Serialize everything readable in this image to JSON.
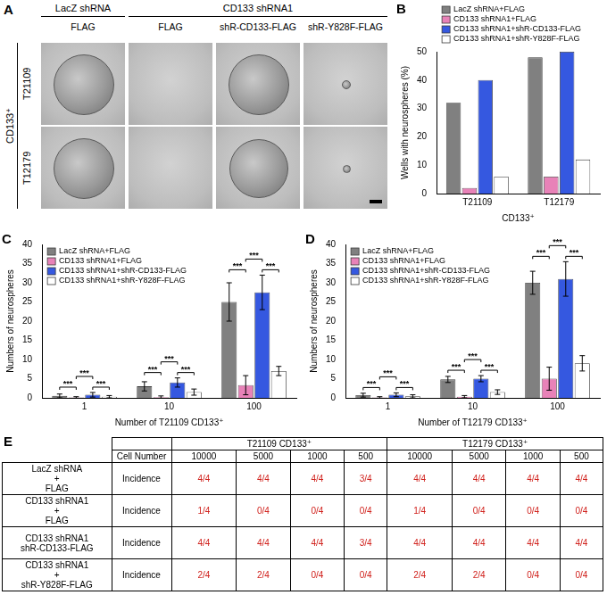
{
  "panel_a": {
    "letter": "A",
    "column_groups": [
      {
        "label": "LacZ shRNA",
        "columns": [
          "FLAG"
        ]
      },
      {
        "label": "CD133 shRNA1",
        "columns": [
          "FLAG",
          "shR-CD133-FLAG",
          "shR-Y828F-FLAG"
        ]
      }
    ],
    "row_group": "CD133⁺",
    "rows": [
      "T21109",
      "T12179"
    ]
  },
  "chart_data": [
    {
      "panel": "B",
      "type": "bar",
      "categories": [
        "T21109",
        "T12179"
      ],
      "x_label": "CD133⁺",
      "y_label": "Wells with neurospheres (%)",
      "ylim": [
        0,
        50
      ],
      "yticks": [
        0,
        10,
        20,
        30,
        40,
        50
      ],
      "grid": false,
      "legend": "top",
      "series": [
        {
          "name": "LacZ shRNA+FLAG",
          "color": "#808080",
          "values": [
            32,
            48
          ]
        },
        {
          "name": "CD133 shRNA1+FLAG",
          "color": "#e882b8",
          "values": [
            2,
            6
          ]
        },
        {
          "name": "CD133 shRNA1+shR-CD133-FLAG",
          "color": "#3558e0",
          "values": [
            40,
            50
          ]
        },
        {
          "name": "CD133 shRNA1+shR-Y828F-FLAG",
          "color": "#ffffff",
          "values": [
            6,
            12
          ]
        }
      ]
    },
    {
      "panel": "C",
      "type": "bar",
      "categories": [
        "1",
        "10",
        "100"
      ],
      "x_label": "Number of T21109 CD133⁺",
      "y_label": "Numbers of neurospheres",
      "ylim": [
        0,
        40
      ],
      "yticks": [
        0,
        5,
        10,
        15,
        20,
        25,
        30,
        35,
        40
      ],
      "grid": false,
      "legend": "top-left",
      "series": [
        {
          "name": "LacZ shRNA+FLAG",
          "color": "#808080",
          "values": [
            0.5,
            3,
            25
          ],
          "errors": [
            0.5,
            1.2,
            5
          ]
        },
        {
          "name": "CD133 shRNA1+FLAG",
          "color": "#e882b8",
          "values": [
            0.1,
            0.2,
            3.3
          ],
          "errors": [
            0.2,
            0.3,
            2.5
          ]
        },
        {
          "name": "CD133 shRNA1+shR-CD133-FLAG",
          "color": "#3558e0",
          "values": [
            0.8,
            4,
            27.5
          ],
          "errors": [
            0.6,
            1.2,
            4.5
          ]
        },
        {
          "name": "CD133 shRNA1+shR-Y828F-FLAG",
          "color": "#ffffff",
          "values": [
            0.3,
            1.5,
            7
          ],
          "errors": [
            0.3,
            0.8,
            1.2
          ]
        }
      ],
      "significance": [
        {
          "category": "1",
          "between": [
            "LacZ shRNA+FLAG",
            "CD133 shRNA1+FLAG"
          ],
          "label": "***"
        },
        {
          "category": "1",
          "between": [
            "CD133 shRNA1+FLAG",
            "CD133 shRNA1+shR-CD133-FLAG"
          ],
          "label": "***"
        },
        {
          "category": "1",
          "between": [
            "CD133 shRNA1+shR-CD133-FLAG",
            "CD133 shRNA1+shR-Y828F-FLAG"
          ],
          "label": "***"
        },
        {
          "category": "10",
          "between": [
            "LacZ shRNA+FLAG",
            "CD133 shRNA1+FLAG"
          ],
          "label": "***"
        },
        {
          "category": "10",
          "between": [
            "CD133 shRNA1+FLAG",
            "CD133 shRNA1+shR-CD133-FLAG"
          ],
          "label": "***"
        },
        {
          "category": "10",
          "between": [
            "CD133 shRNA1+shR-CD133-FLAG",
            "CD133 shRNA1+shR-Y828F-FLAG"
          ],
          "label": "***"
        },
        {
          "category": "100",
          "between": [
            "LacZ shRNA+FLAG",
            "CD133 shRNA1+FLAG"
          ],
          "label": "***"
        },
        {
          "category": "100",
          "between": [
            "CD133 shRNA1+FLAG",
            "CD133 shRNA1+shR-CD133-FLAG"
          ],
          "label": "***"
        },
        {
          "category": "100",
          "between": [
            "CD133 shRNA1+shR-CD133-FLAG",
            "CD133 shRNA1+shR-Y828F-FLAG"
          ],
          "label": "***"
        }
      ]
    },
    {
      "panel": "D",
      "type": "bar",
      "categories": [
        "1",
        "10",
        "100"
      ],
      "x_label": "Number of T12179 CD133⁺",
      "y_label": "Numbers of neurospheres",
      "ylim": [
        0,
        40
      ],
      "yticks": [
        0,
        5,
        10,
        15,
        20,
        25,
        30,
        35,
        40
      ],
      "grid": false,
      "legend": "top-left",
      "series": [
        {
          "name": "LacZ shRNA+FLAG",
          "color": "#808080",
          "values": [
            0.7,
            4.8,
            30
          ],
          "errors": [
            0.5,
            0.8,
            3
          ]
        },
        {
          "name": "CD133 shRNA1+FLAG",
          "color": "#e882b8",
          "values": [
            0.1,
            0.3,
            5
          ],
          "errors": [
            0.2,
            0.3,
            3
          ]
        },
        {
          "name": "CD133 shRNA1+shR-CD133-FLAG",
          "color": "#3558e0",
          "values": [
            0.8,
            5,
            31
          ],
          "errors": [
            0.5,
            0.8,
            4.5
          ]
        },
        {
          "name": "CD133 shRNA1+shR-Y828F-FLAG",
          "color": "#ffffff",
          "values": [
            0.4,
            1.5,
            9
          ],
          "errors": [
            0.4,
            0.6,
            2
          ]
        }
      ],
      "significance": [
        {
          "category": "1",
          "between": [
            "LacZ shRNA+FLAG",
            "CD133 shRNA1+FLAG"
          ],
          "label": "***"
        },
        {
          "category": "1",
          "between": [
            "CD133 shRNA1+FLAG",
            "CD133 shRNA1+shR-CD133-FLAG"
          ],
          "label": "***"
        },
        {
          "category": "1",
          "between": [
            "CD133 shRNA1+shR-CD133-FLAG",
            "CD133 shRNA1+shR-Y828F-FLAG"
          ],
          "label": "***"
        },
        {
          "category": "10",
          "between": [
            "LacZ shRNA+FLAG",
            "CD133 shRNA1+FLAG"
          ],
          "label": "***"
        },
        {
          "category": "10",
          "between": [
            "CD133 shRNA1+FLAG",
            "CD133 shRNA1+shR-CD133-FLAG"
          ],
          "label": "***"
        },
        {
          "category": "10",
          "between": [
            "CD133 shRNA1+shR-CD133-FLAG",
            "CD133 shRNA1+shR-Y828F-FLAG"
          ],
          "label": "***"
        },
        {
          "category": "100",
          "between": [
            "LacZ shRNA+FLAG",
            "CD133 shRNA1+FLAG"
          ],
          "label": "***"
        },
        {
          "category": "100",
          "between": [
            "CD133 shRNA1+FLAG",
            "CD133 shRNA1+shR-CD133-FLAG"
          ],
          "label": "***"
        },
        {
          "category": "100",
          "between": [
            "CD133 shRNA1+shR-CD133-FLAG",
            "CD133 shRNA1+shR-Y828F-FLAG"
          ],
          "label": "***"
        }
      ]
    }
  ],
  "panel_e": {
    "letter": "E",
    "groups": [
      "T21109 CD133⁺",
      "T12179 CD133⁺"
    ],
    "cell_number_label": "Cell Number",
    "cell_numbers": [
      10000,
      5000,
      1000,
      500
    ],
    "rows": [
      {
        "condition": [
          "LacZ shRNA",
          "+",
          "FLAG"
        ],
        "measure": "Incidence",
        "values": [
          "4/4",
          "4/4",
          "4/4",
          "3/4",
          "4/4",
          "4/4",
          "4/4",
          "4/4"
        ]
      },
      {
        "condition": [
          "CD133 shRNA1",
          "+",
          "FLAG"
        ],
        "measure": "Incidence",
        "values": [
          "1/4",
          "0/4",
          "0/4",
          "0/4",
          "1/4",
          "0/4",
          "0/4",
          "0/4"
        ]
      },
      {
        "condition": [
          "CD133 shRNA1",
          "shR-CD133-FLAG"
        ],
        "measure": "Incidence",
        "values": [
          "4/4",
          "4/4",
          "4/4",
          "3/4",
          "4/4",
          "4/4",
          "4/4",
          "4/4"
        ]
      },
      {
        "condition": [
          "CD133 shRNA1",
          "+",
          "shR-Y828F-FLAG"
        ],
        "measure": "Incidence",
        "values": [
          "2/4",
          "2/4",
          "0/4",
          "0/4",
          "2/4",
          "2/4",
          "0/4",
          "0/4"
        ]
      }
    ]
  }
}
